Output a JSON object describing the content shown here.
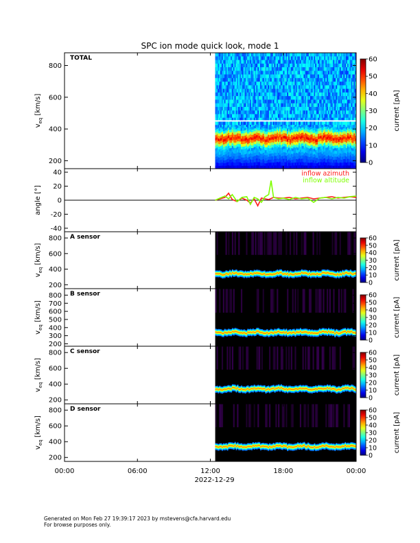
{
  "title": "SPC ion mode quick look, mode 1",
  "footer": {
    "line1": "Generated on Mon Feb 27 19:39:17 2023 by mstevens@cfa.harvard.edu",
    "line2": "For browse purposes only."
  },
  "chart_data": [
    {
      "type": "heatmap",
      "panel_label": "TOTAL",
      "ylabel": "v",
      "ylabel_sub": "eq",
      "ylabel_unit": "[km/s]",
      "yticks": [
        200,
        400,
        600,
        800
      ],
      "ylim": [
        150,
        880
      ],
      "xlim_hours": [
        0,
        24
      ],
      "data_start_hour": 12.4,
      "colorbar": {
        "label": "current [pA]",
        "ticks": [
          0,
          10,
          20,
          30,
          40,
          50,
          60
        ],
        "range": [
          0,
          60
        ]
      },
      "core_velocity_kms": 340,
      "background": "dense"
    },
    {
      "type": "line",
      "ylabel": "angle [°]",
      "yticks": [
        -40,
        -20,
        0,
        20,
        40
      ],
      "ylim": [
        -45,
        45
      ],
      "xlim_hours": [
        0,
        24
      ],
      "zero_line": true,
      "series": [
        {
          "name": "inflow azimuth",
          "color": "#ff1a1a",
          "x": [
            12.4,
            12.8,
            13.2,
            13.5,
            13.8,
            14.2,
            14.6,
            15.0,
            15.3,
            15.6,
            15.9,
            16.2,
            16.5,
            16.8,
            17.2,
            17.6,
            18.0,
            18.5,
            19.0,
            19.5,
            20.0,
            20.5,
            21.0,
            21.5,
            22.0,
            22.5,
            23.0,
            23.5,
            24.0
          ],
          "y": [
            0,
            2,
            4,
            10,
            1,
            -2,
            3,
            0,
            -4,
            2,
            -8,
            3,
            2,
            1,
            4,
            3,
            3,
            4,
            2,
            3,
            4,
            2,
            3,
            4,
            5,
            3,
            4,
            5,
            4
          ]
        },
        {
          "name": "inflow altitude",
          "color": "#7fff00",
          "x": [
            12.4,
            12.8,
            13.2,
            13.5,
            13.8,
            14.2,
            14.6,
            15.0,
            15.3,
            15.6,
            15.9,
            16.2,
            16.5,
            16.8,
            17.0,
            17.2,
            17.6,
            18.0,
            18.5,
            19.0,
            19.5,
            20.0,
            20.5,
            21.0,
            21.5,
            22.0,
            22.5,
            23.0,
            23.5,
            24.0
          ],
          "y": [
            0,
            3,
            6,
            2,
            8,
            -2,
            4,
            5,
            -6,
            4,
            2,
            -3,
            5,
            8,
            28,
            4,
            2,
            3,
            1,
            4,
            2,
            3,
            -3,
            3,
            4,
            2,
            4,
            3,
            5,
            6
          ]
        }
      ]
    },
    {
      "type": "heatmap",
      "panel_label": "A sensor",
      "ylabel": "v",
      "ylabel_sub": "eq",
      "ylabel_unit": "[km/s]",
      "yticks": [
        200,
        400,
        600,
        800
      ],
      "ylim": [
        150,
        880
      ],
      "xlim_hours": [
        0,
        24
      ],
      "data_start_hour": 12.4,
      "colorbar": {
        "label": "current [pA]",
        "ticks": [
          0,
          10,
          20,
          30,
          40,
          50,
          60
        ],
        "range": [
          0,
          60
        ]
      },
      "core_velocity_kms": 340,
      "background": "sparse"
    },
    {
      "type": "heatmap",
      "panel_label": "B sensor",
      "ylabel": "v",
      "ylabel_sub": "eq",
      "ylabel_unit": "[km/s]",
      "yticks": [
        200,
        300,
        400,
        500,
        600,
        700,
        800
      ],
      "ylim": [
        170,
        880
      ],
      "xlim_hours": [
        0,
        24
      ],
      "data_start_hour": 12.4,
      "colorbar": {
        "label": "current [pA]",
        "ticks": [
          0,
          10,
          20,
          30,
          40,
          50,
          60
        ],
        "range": [
          0,
          60
        ]
      },
      "core_velocity_kms": 340,
      "background": "sparse"
    },
    {
      "type": "heatmap",
      "panel_label": "C sensor",
      "ylabel": "v",
      "ylabel_sub": "eq",
      "ylabel_unit": "[km/s]",
      "yticks": [
        200,
        400,
        600,
        800
      ],
      "ylim": [
        150,
        880
      ],
      "xlim_hours": [
        0,
        24
      ],
      "data_start_hour": 12.4,
      "colorbar": {
        "label": "current [pA]",
        "ticks": [
          0,
          10,
          20,
          30,
          40,
          50,
          60
        ],
        "range": [
          0,
          60
        ]
      },
      "core_velocity_kms": 340,
      "background": "sparse"
    },
    {
      "type": "heatmap",
      "panel_label": "D sensor",
      "ylabel": "v",
      "ylabel_sub": "eq",
      "ylabel_unit": "[km/s]",
      "yticks": [
        200,
        400,
        600,
        800
      ],
      "ylim": [
        150,
        880
      ],
      "xlim_hours": [
        0,
        24
      ],
      "data_start_hour": 12.4,
      "colorbar": {
        "label": "current [pA]",
        "ticks": [
          0,
          10,
          20,
          30,
          40,
          50,
          60
        ],
        "range": [
          0,
          60
        ]
      },
      "core_velocity_kms": 340,
      "background": "sparse"
    }
  ],
  "xaxis": {
    "ticks": [
      0,
      6,
      12,
      18,
      24
    ],
    "tick_labels": [
      "00:00",
      "06:00",
      "12:00",
      "18:00",
      "00:00"
    ],
    "date_label": "2022-12-29"
  }
}
